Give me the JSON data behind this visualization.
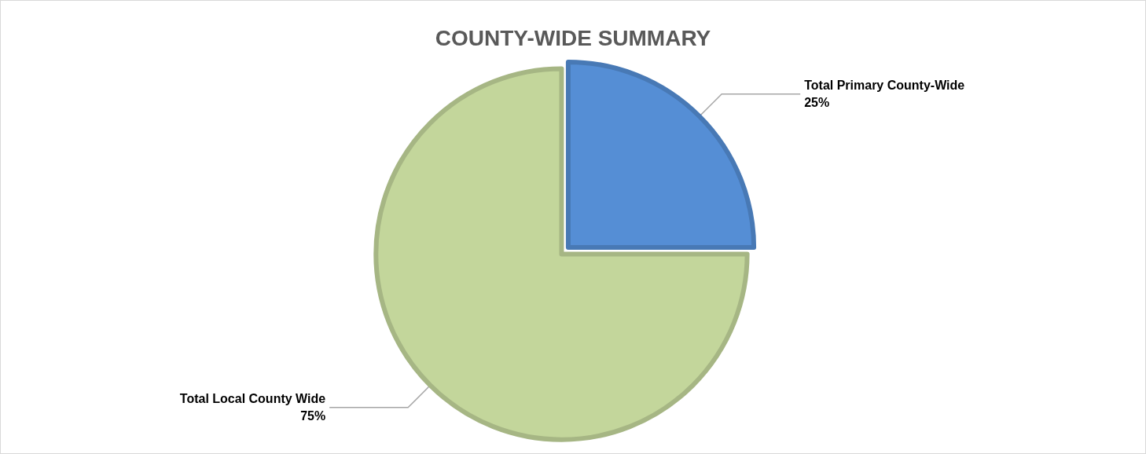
{
  "chart_data": {
    "type": "pie",
    "title": "COUNTY-WIDE SUMMARY",
    "categories": [
      "Total Primary County-Wide",
      "Total Local County Wide"
    ],
    "values": [
      25,
      75
    ],
    "colors": [
      "#558ed5",
      "#c3d69b"
    ],
    "value_labels": [
      "25%",
      "75%"
    ]
  }
}
